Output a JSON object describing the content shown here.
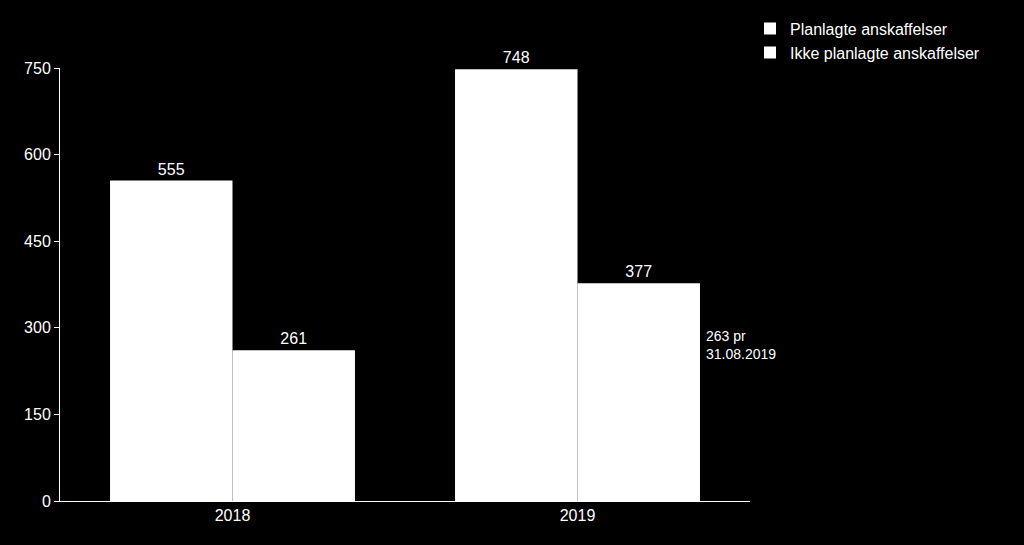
{
  "chart_data": {
    "type": "bar",
    "categories": [
      "2018",
      "2019"
    ],
    "series": [
      {
        "name": "Planlagte anskaffelser",
        "color": "#ffffff",
        "values": [
          555,
          748
        ]
      },
      {
        "name": "Ikke planlagte anskaffelser",
        "color": "#ffffff",
        "values": [
          261,
          377
        ]
      }
    ],
    "ylim": [
      0,
      750
    ],
    "yticks": [
      0,
      150,
      300,
      450,
      600,
      750
    ],
    "grid": false,
    "data_labels": true,
    "legend": "upper right",
    "annotations": [
      {
        "text": [
          "263 pr",
          "31.08.2019"
        ],
        "category": "2019"
      }
    ]
  }
}
